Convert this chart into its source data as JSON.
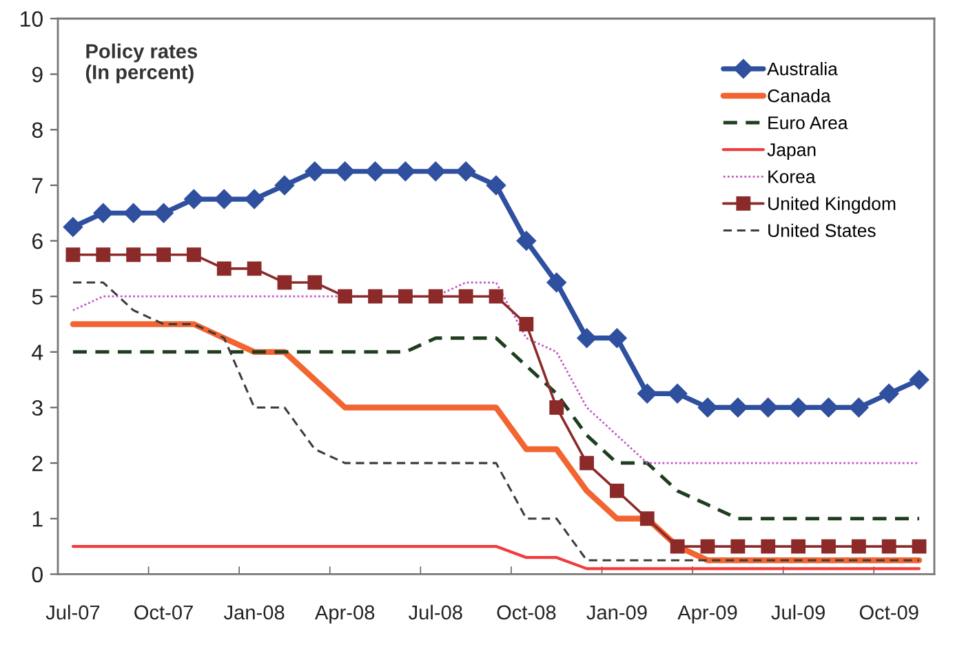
{
  "chart_data": {
    "type": "line",
    "title": "Policy rates",
    "subtitle": "(In percent)",
    "categories": [
      "Jul-07",
      null,
      null,
      "Oct-07",
      null,
      null,
      "Jan-08",
      null,
      null,
      "Apr-08",
      null,
      null,
      "Jul-08",
      null,
      null,
      "Oct-08",
      null,
      null,
      "Jan-09",
      null,
      null,
      "Apr-09",
      null,
      null,
      "Jul-09",
      null,
      null,
      "Oct-09",
      null
    ],
    "series": [
      {
        "name": "Australia",
        "color": "#2f4f9f",
        "marker": "diamond",
        "line_style": "solid",
        "values": [
          6.25,
          6.5,
          6.5,
          6.5,
          6.75,
          6.75,
          6.75,
          7.0,
          7.25,
          7.25,
          7.25,
          7.25,
          7.25,
          7.25,
          7.0,
          6.0,
          5.25,
          4.25,
          4.25,
          3.25,
          3.25,
          3.0,
          3.0,
          3.0,
          3.0,
          3.0,
          3.0,
          3.25,
          3.5
        ]
      },
      {
        "name": "Canada",
        "color": "#f26430",
        "line_style": "solid",
        "values": [
          4.5,
          4.5,
          4.5,
          4.5,
          4.5,
          4.25,
          4.0,
          4.0,
          3.5,
          3.0,
          3.0,
          3.0,
          3.0,
          3.0,
          3.0,
          2.25,
          2.25,
          1.5,
          1.0,
          1.0,
          0.5,
          0.25,
          0.25,
          0.25,
          0.25,
          0.25,
          0.25,
          0.25,
          0.25
        ]
      },
      {
        "name": "Euro Area",
        "color": "#1f3d1f",
        "line_style": "dashed",
        "values": [
          4.0,
          4.0,
          4.0,
          4.0,
          4.0,
          4.0,
          4.0,
          4.0,
          4.0,
          4.0,
          4.0,
          4.0,
          4.25,
          4.25,
          4.25,
          3.75,
          3.25,
          2.5,
          2.0,
          2.0,
          1.5,
          1.25,
          1.0,
          1.0,
          1.0,
          1.0,
          1.0,
          1.0,
          1.0
        ]
      },
      {
        "name": "Japan",
        "color": "#f03c3c",
        "line_style": "solid",
        "values": [
          0.5,
          0.5,
          0.5,
          0.5,
          0.5,
          0.5,
          0.5,
          0.5,
          0.5,
          0.5,
          0.5,
          0.5,
          0.5,
          0.5,
          0.5,
          0.3,
          0.3,
          0.1,
          0.1,
          0.1,
          0.1,
          0.1,
          0.1,
          0.1,
          0.1,
          0.1,
          0.1,
          0.1,
          0.1
        ]
      },
      {
        "name": "Korea",
        "color": "#c455c4",
        "line_style": "dotted",
        "values": [
          4.75,
          5.0,
          5.0,
          5.0,
          5.0,
          5.0,
          5.0,
          5.0,
          5.0,
          5.0,
          5.0,
          5.0,
          5.0,
          5.25,
          5.25,
          4.25,
          4.0,
          3.0,
          2.5,
          2.0,
          2.0,
          2.0,
          2.0,
          2.0,
          2.0,
          2.0,
          2.0,
          2.0,
          2.0
        ]
      },
      {
        "name": "United Kingdom",
        "color": "#8c2a2a",
        "marker": "square",
        "line_style": "solid",
        "values": [
          5.75,
          5.75,
          5.75,
          5.75,
          5.75,
          5.5,
          5.5,
          5.25,
          5.25,
          5.0,
          5.0,
          5.0,
          5.0,
          5.0,
          5.0,
          4.5,
          3.0,
          2.0,
          1.5,
          1.0,
          0.5,
          0.5,
          0.5,
          0.5,
          0.5,
          0.5,
          0.5,
          0.5,
          0.5
        ]
      },
      {
        "name": "United States",
        "color": "#3c3c3c",
        "line_style": "dashed",
        "values": [
          5.25,
          5.25,
          4.75,
          4.5,
          4.5,
          4.25,
          3.0,
          3.0,
          2.25,
          2.0,
          2.0,
          2.0,
          2.0,
          2.0,
          2.0,
          1.0,
          1.0,
          0.25,
          0.25,
          0.25,
          0.25,
          0.25,
          0.25,
          0.25,
          0.25,
          0.25,
          0.25,
          0.25,
          0.25
        ]
      }
    ],
    "ylim": [
      0,
      10
    ],
    "yticks": [
      0,
      1,
      2,
      3,
      4,
      5,
      6,
      7,
      8,
      9,
      10
    ],
    "legend": "top right"
  }
}
